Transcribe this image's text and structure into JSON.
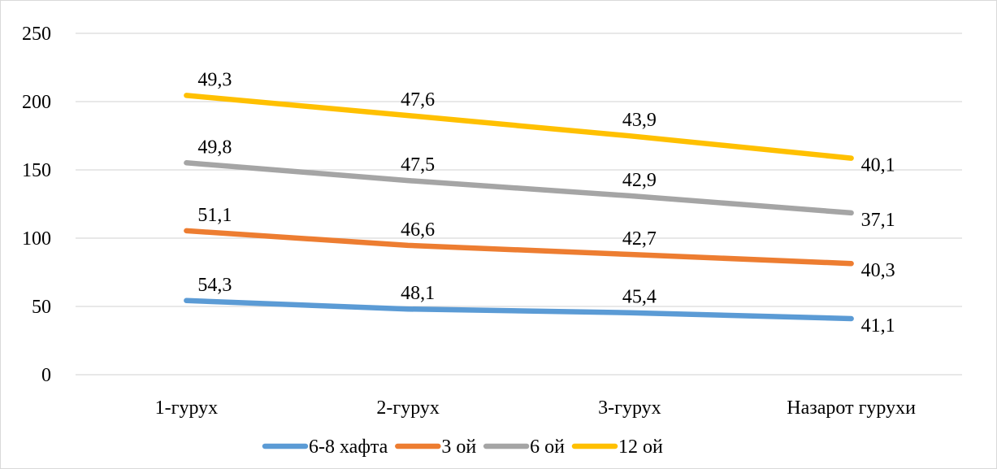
{
  "chart_data": {
    "type": "line",
    "stacked": true,
    "title": "",
    "xlabel": "",
    "ylabel": "",
    "categories": [
      "1-гурух",
      "2-гурух",
      "3-гурух",
      "Назарот гурухи"
    ],
    "ylim": [
      0,
      250
    ],
    "yticks": [
      0,
      50,
      100,
      150,
      200,
      250
    ],
    "grid": true,
    "legend_position": "bottom",
    "series": [
      {
        "name": "6-8 хафта",
        "color": "#5b9bd5",
        "values": [
          54.3,
          48.1,
          45.4,
          41.1
        ],
        "labels": [
          "54,3",
          "48,1",
          "45,4",
          "41,1"
        ]
      },
      {
        "name": "3 ой",
        "color": "#ed7d31",
        "values": [
          51.1,
          46.6,
          42.7,
          40.3
        ],
        "labels": [
          "51,1",
          "46,6",
          "42,7",
          "40,3"
        ]
      },
      {
        "name": "6 ой",
        "color": "#a5a5a5",
        "values": [
          49.8,
          47.5,
          42.9,
          37.1
        ],
        "labels": [
          "49,8",
          "47,5",
          "42,9",
          "37,1"
        ]
      },
      {
        "name": "12 ой",
        "color": "#ffc000",
        "values": [
          49.3,
          47.6,
          43.9,
          40.1
        ],
        "labels": [
          "49,3",
          "47,6",
          "43,9",
          "40,1"
        ]
      }
    ]
  }
}
